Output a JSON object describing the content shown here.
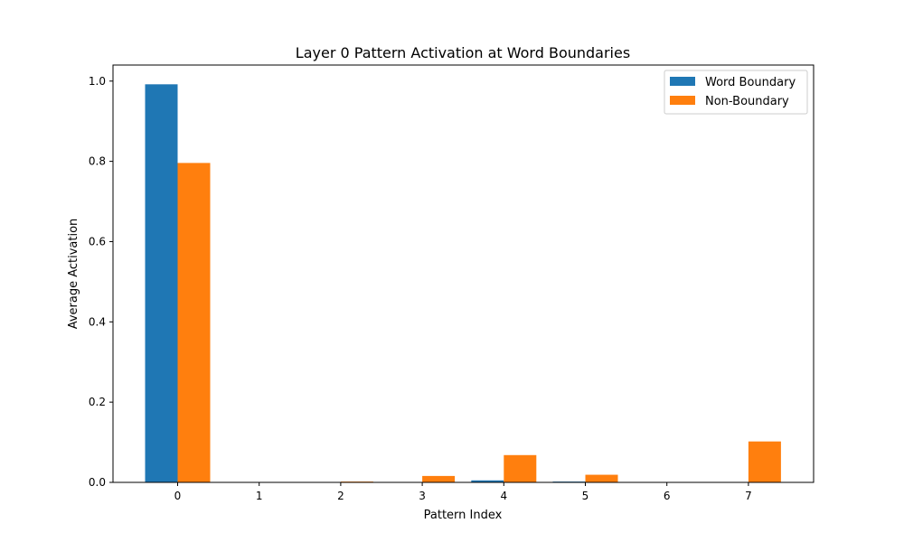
{
  "chart_data": {
    "type": "bar",
    "title": "Layer 0 Pattern Activation at Word Boundaries",
    "xlabel": "Pattern Index",
    "ylabel": "Average Activation",
    "categories": [
      "0",
      "1",
      "2",
      "3",
      "4",
      "5",
      "6",
      "7"
    ],
    "series": [
      {
        "name": "Word Boundary",
        "color": "#1f77b4",
        "values": [
          0.992,
          0.0,
          0.0,
          0.0,
          0.005,
          0.002,
          0.0,
          0.0
        ]
      },
      {
        "name": "Non-Boundary",
        "color": "#ff7f0e",
        "values": [
          0.796,
          0.0,
          0.002,
          0.016,
          0.068,
          0.019,
          0.0,
          0.102
        ]
      }
    ],
    "ylim": [
      0,
      1.04
    ],
    "yticks": [
      "0.0",
      "0.2",
      "0.4",
      "0.6",
      "0.8",
      "1.0"
    ],
    "grid": false,
    "legend_position": "top-right"
  }
}
